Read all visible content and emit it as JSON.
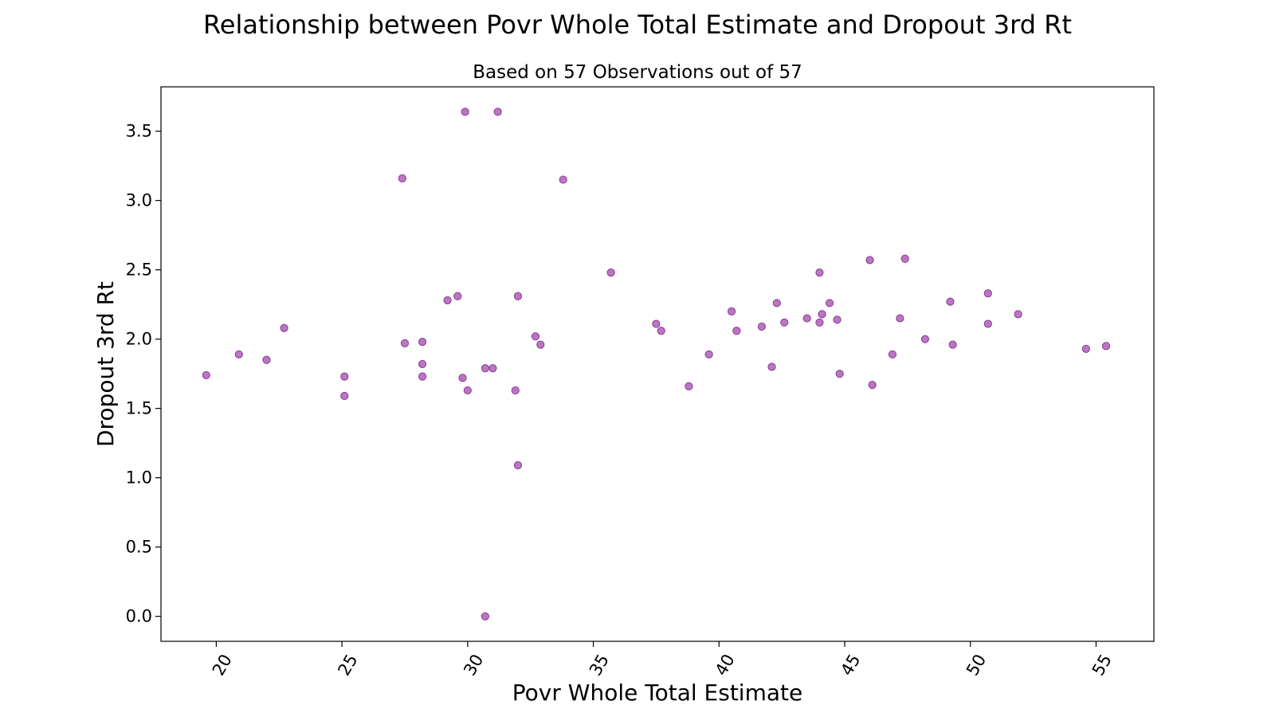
{
  "chart_data": {
    "type": "scatter",
    "title": "Relationship between Povr Whole Total Estimate and Dropout 3rd Rt",
    "subtitle": "Based on 57 Observations out of 57",
    "xlabel": "Povr Whole Total Estimate",
    "ylabel": "Dropout 3rd Rt",
    "xlim": [
      17.8,
      57.3
    ],
    "ylim": [
      -0.18,
      3.82
    ],
    "xticks": [
      20,
      25,
      30,
      35,
      40,
      45,
      50,
      55
    ],
    "xtick_labels": [
      "20",
      "25",
      "30",
      "35",
      "40",
      "45",
      "50",
      "55"
    ],
    "yticks": [
      0.0,
      0.5,
      1.0,
      1.5,
      2.0,
      2.5,
      3.0,
      3.5
    ],
    "ytick_labels": [
      "0.0",
      "0.5",
      "1.0",
      "1.5",
      "2.0",
      "2.5",
      "3.0",
      "3.5"
    ],
    "grid": false,
    "marker_color": "#a64fb0",
    "marker_edge_color": "#8a3a96",
    "points": [
      {
        "x": 19.6,
        "y": 1.74
      },
      {
        "x": 20.9,
        "y": 1.89
      },
      {
        "x": 22.0,
        "y": 1.85
      },
      {
        "x": 22.7,
        "y": 2.08
      },
      {
        "x": 25.1,
        "y": 1.73
      },
      {
        "x": 25.1,
        "y": 1.59
      },
      {
        "x": 27.4,
        "y": 3.16
      },
      {
        "x": 27.5,
        "y": 1.97
      },
      {
        "x": 28.2,
        "y": 1.98
      },
      {
        "x": 28.2,
        "y": 1.82
      },
      {
        "x": 28.2,
        "y": 1.73
      },
      {
        "x": 29.2,
        "y": 2.28
      },
      {
        "x": 29.6,
        "y": 2.31
      },
      {
        "x": 29.8,
        "y": 1.72
      },
      {
        "x": 29.9,
        "y": 3.64
      },
      {
        "x": 30.0,
        "y": 1.63
      },
      {
        "x": 30.7,
        "y": 1.79
      },
      {
        "x": 31.0,
        "y": 1.79
      },
      {
        "x": 30.7,
        "y": 0.0
      },
      {
        "x": 31.2,
        "y": 3.64
      },
      {
        "x": 31.9,
        "y": 1.63
      },
      {
        "x": 32.0,
        "y": 2.31
      },
      {
        "x": 32.0,
        "y": 1.09
      },
      {
        "x": 32.7,
        "y": 2.02
      },
      {
        "x": 32.9,
        "y": 1.96
      },
      {
        "x": 33.8,
        "y": 3.15
      },
      {
        "x": 35.7,
        "y": 2.48
      },
      {
        "x": 37.5,
        "y": 2.11
      },
      {
        "x": 37.7,
        "y": 2.06
      },
      {
        "x": 38.8,
        "y": 1.66
      },
      {
        "x": 39.6,
        "y": 1.89
      },
      {
        "x": 40.5,
        "y": 2.2
      },
      {
        "x": 40.7,
        "y": 2.06
      },
      {
        "x": 41.7,
        "y": 2.09
      },
      {
        "x": 42.1,
        "y": 1.8
      },
      {
        "x": 42.3,
        "y": 2.26
      },
      {
        "x": 42.6,
        "y": 2.12
      },
      {
        "x": 43.5,
        "y": 2.15
      },
      {
        "x": 44.0,
        "y": 2.48
      },
      {
        "x": 44.0,
        "y": 2.12
      },
      {
        "x": 44.1,
        "y": 2.18
      },
      {
        "x": 44.4,
        "y": 2.26
      },
      {
        "x": 44.7,
        "y": 2.14
      },
      {
        "x": 44.8,
        "y": 1.75
      },
      {
        "x": 46.0,
        "y": 2.57
      },
      {
        "x": 46.1,
        "y": 1.67
      },
      {
        "x": 46.9,
        "y": 1.89
      },
      {
        "x": 47.2,
        "y": 2.15
      },
      {
        "x": 47.4,
        "y": 2.58
      },
      {
        "x": 48.2,
        "y": 2.0
      },
      {
        "x": 49.2,
        "y": 2.27
      },
      {
        "x": 49.3,
        "y": 1.96
      },
      {
        "x": 50.7,
        "y": 2.33
      },
      {
        "x": 50.7,
        "y": 2.11
      },
      {
        "x": 51.9,
        "y": 2.18
      },
      {
        "x": 54.6,
        "y": 1.93
      },
      {
        "x": 55.4,
        "y": 1.95
      }
    ]
  }
}
